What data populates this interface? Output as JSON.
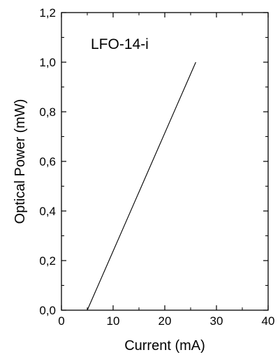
{
  "chart_data": {
    "type": "line",
    "xlabel": "Current (mA)",
    "ylabel": "Optical Power (mW)",
    "annotation": "LFO-14-i",
    "xlim": [
      0,
      40
    ],
    "ylim": [
      0,
      1.2
    ],
    "x_ticks": [
      "0",
      "10",
      "20",
      "30",
      "40"
    ],
    "y_ticks": [
      "0,0",
      "0,2",
      "0,4",
      "0,6",
      "0,8",
      "1,0",
      "1,2"
    ],
    "grid": false,
    "series": [
      {
        "x": [
          5.0,
          26.0
        ],
        "y": [
          0.0,
          1.0
        ]
      }
    ],
    "line_color": "#000000"
  }
}
